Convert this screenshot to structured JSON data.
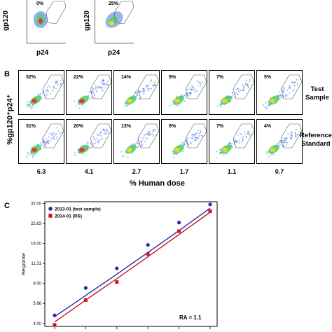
{
  "panel_a": {
    "plots": [
      {
        "percent": "0%",
        "ylabel": "gp120",
        "xlabel": "p24"
      },
      {
        "percent": "25%",
        "ylabel": "gp120",
        "xlabel": "p24"
      }
    ]
  },
  "panel_b": {
    "letter": "B",
    "ylabel": "%gp120⁺p24⁺",
    "xlabel": "% Human dose",
    "rows": [
      {
        "label_line1": "Test",
        "label_line2": "Sample",
        "percents": [
          "32%",
          "22%",
          "14%",
          "9%",
          "7%",
          "5%"
        ]
      },
      {
        "label_line1": "Reference",
        "label_line2": "Standard",
        "percents": [
          "31%",
          "20%",
          "13%",
          "9%",
          "7%",
          "4%"
        ]
      }
    ],
    "doses": [
      "6.3",
      "4.1",
      "2.7",
      "1.7",
      "1.1",
      "0.7"
    ]
  },
  "panel_c": {
    "letter": "C",
    "annotation": "RA = 1.1"
  },
  "chart_data": [
    {
      "type": "scatter",
      "title": "",
      "xlabel": "",
      "ylabel": "Response",
      "y_ticks": [
        "4.00",
        "5.66",
        "8.00",
        "11.31",
        "16.00",
        "22.63",
        "32.00"
      ],
      "y_scale": "log2",
      "ylim": [
        3.8,
        33
      ],
      "x": [
        1,
        2,
        3,
        4,
        5,
        6
      ],
      "series": [
        {
          "name": "2013-01 (test sample)",
          "color": "#1f2fa8",
          "marker": "circle",
          "values": [
            4.6,
            7.4,
            10.4,
            15.6,
            23.0,
            31.5
          ],
          "fit": [
            4.5,
            6.5,
            9.4,
            13.7,
            20.0,
            29.5
          ]
        },
        {
          "name": "2014-01 (RS)",
          "color": "#c8171e",
          "marker": "square",
          "values": [
            3.9,
            6.0,
            8.2,
            13.3,
            19.8,
            28.0
          ],
          "fit": [
            4.1,
            6.0,
            8.7,
            12.7,
            18.7,
            27.5
          ]
        }
      ],
      "legend": "top-left",
      "grid": false
    }
  ],
  "colors": {
    "accent_blue": "#1f2fa8",
    "accent_red": "#c8171e"
  }
}
